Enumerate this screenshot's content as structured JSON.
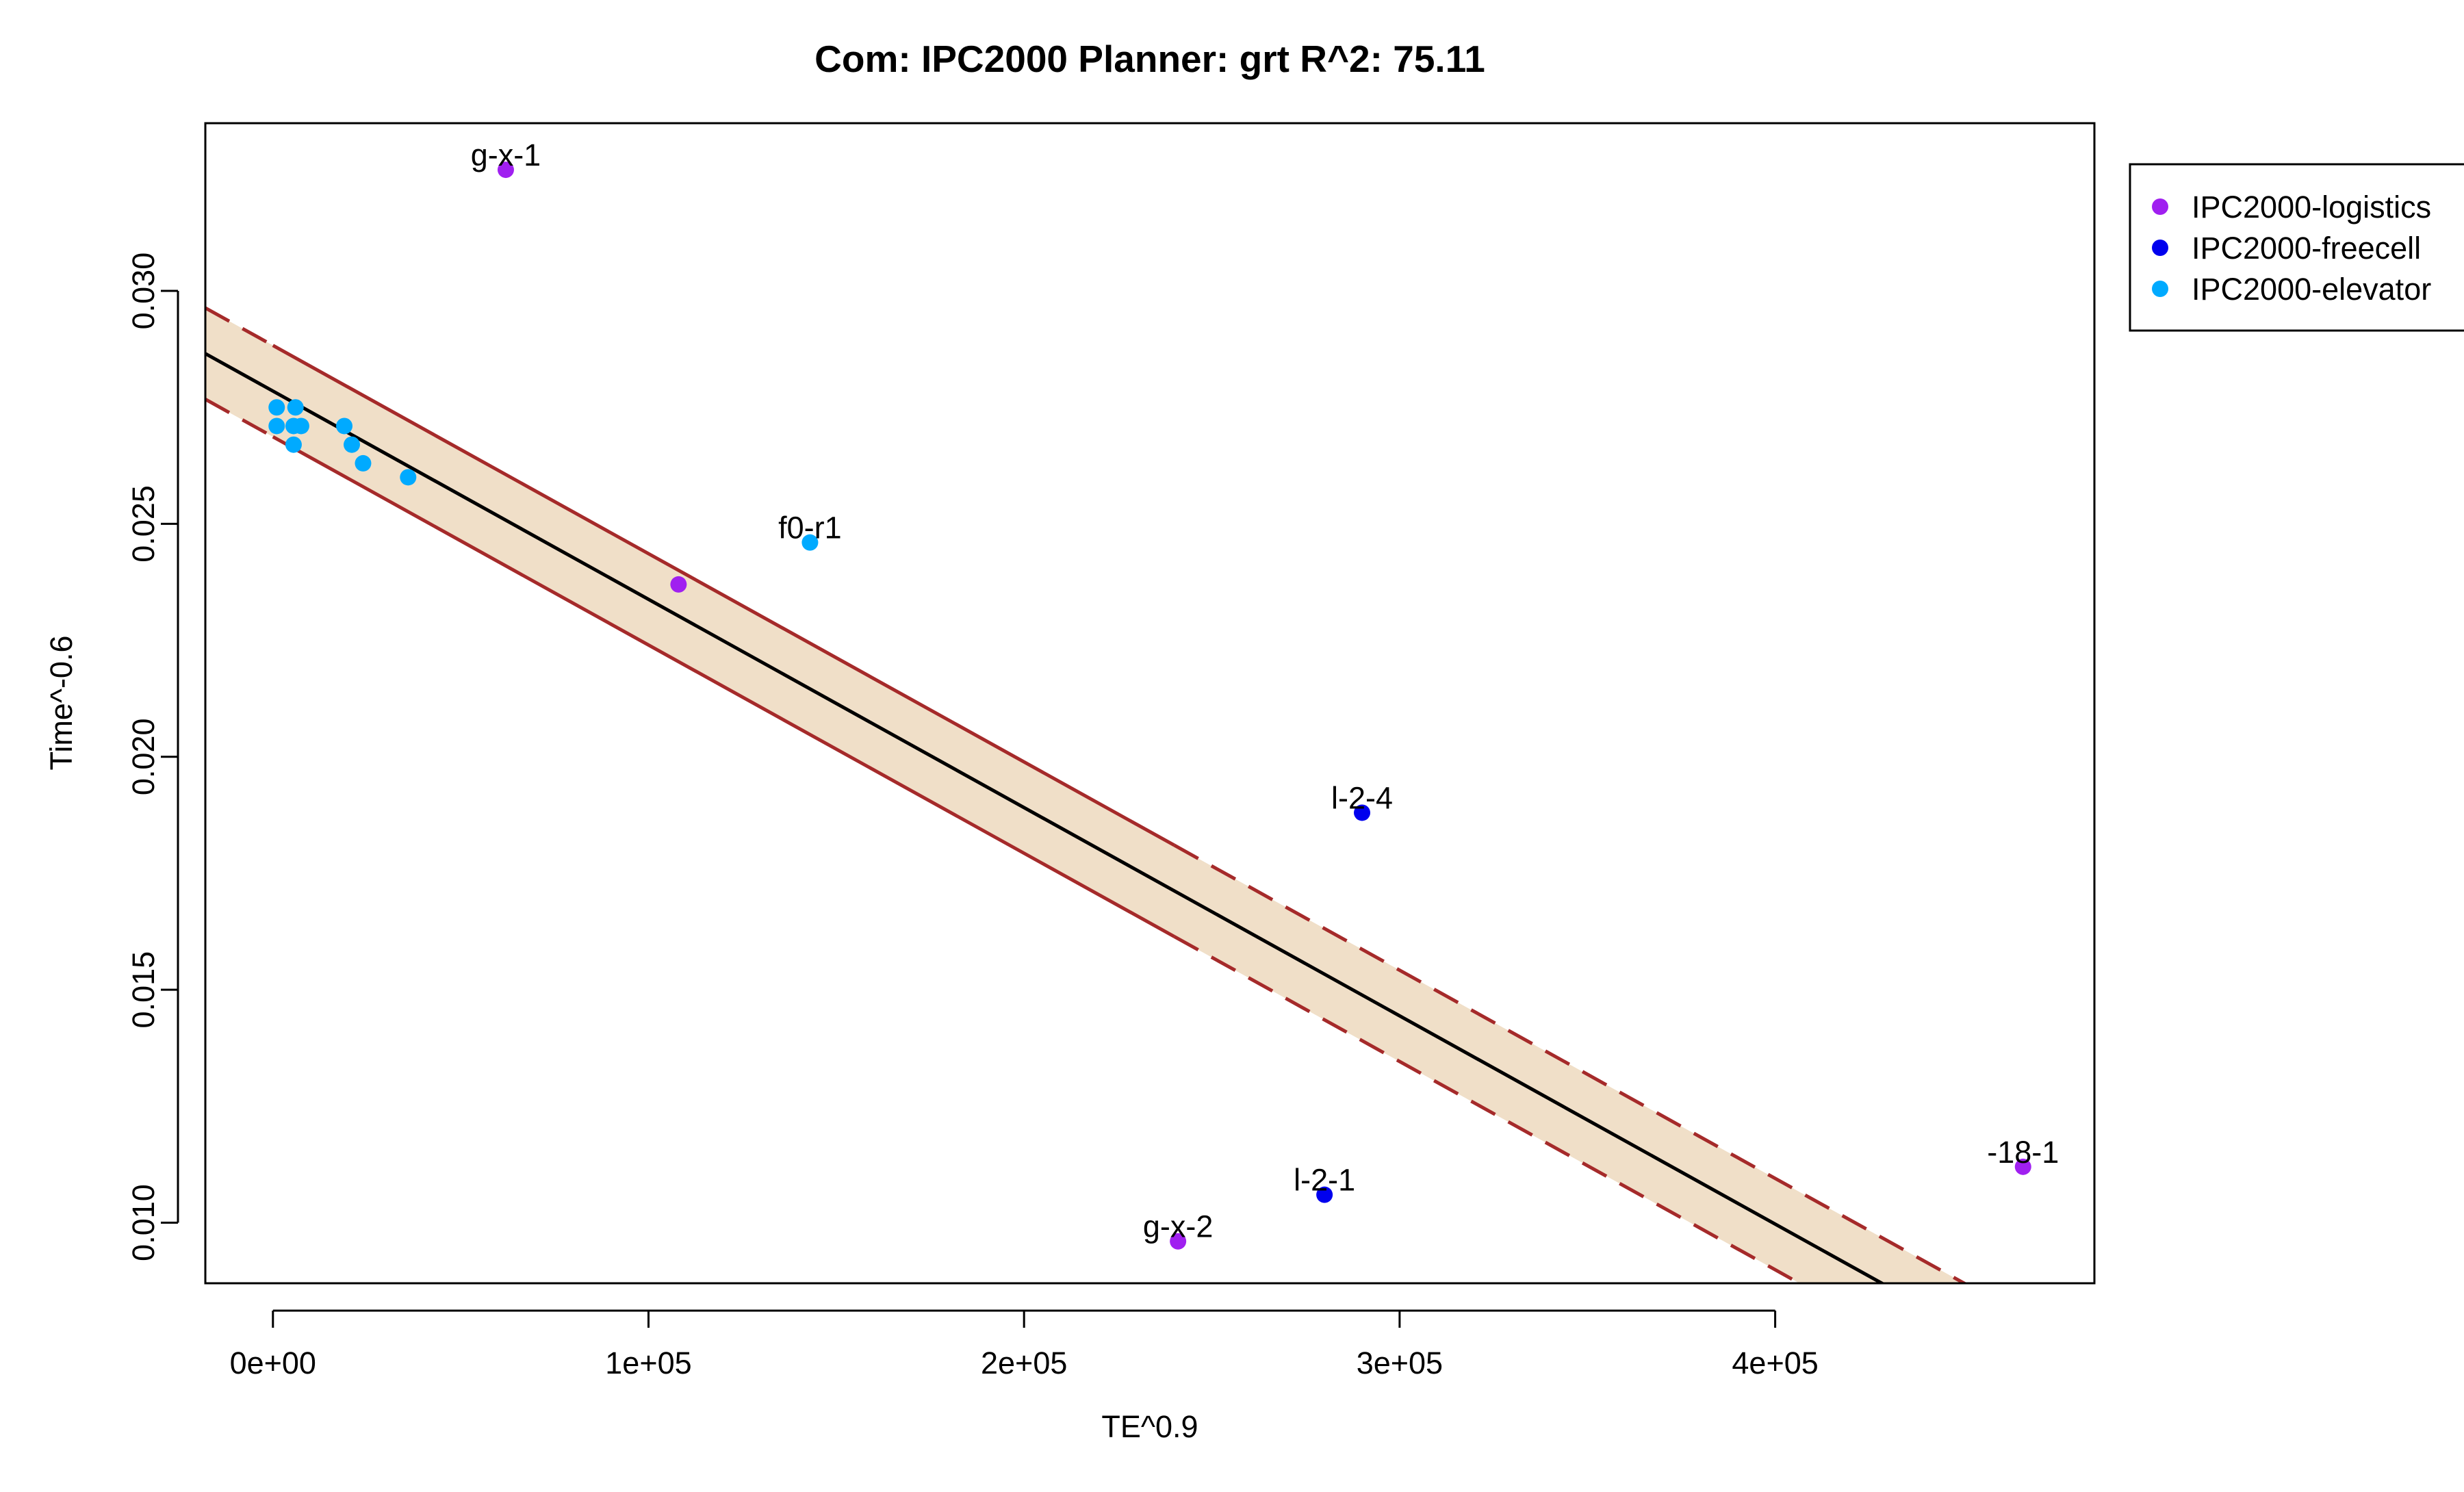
{
  "chart_data": {
    "type": "scatter",
    "title": "Com: IPC2000 Planner: grt R^2: 75.11",
    "xlabel": "TE^0.9",
    "ylabel": "Time^-0.6",
    "xlim": [
      -18000,
      485000
    ],
    "ylim": [
      0.0087,
      0.0336
    ],
    "x_ticks": [
      0,
      100000,
      200000,
      300000,
      400000
    ],
    "x_tick_labels": [
      "0e+00",
      "1e+05",
      "2e+05",
      "3e+05",
      "4e+05"
    ],
    "y_ticks": [
      0.01,
      0.015,
      0.02,
      0.025,
      0.03
    ],
    "y_tick_labels": [
      "0.010",
      "0.015",
      "0.020",
      "0.025",
      "0.030"
    ],
    "grid": false,
    "legend_position": "top-right, outside plot",
    "regression": {
      "intercept": 0.02785,
      "slope": -4.47e-08,
      "band_halfwidth": 0.00098,
      "solid_band_x_range": [
        0,
        240000
      ],
      "line_color": "#000000",
      "band_line_color": "#a52a2a",
      "band_fill_color": "#f0dfc8"
    },
    "series": [
      {
        "name": "IPC2000-logistics",
        "color": "#a020f0",
        "points": [
          {
            "x": 62000,
            "y": 0.0326,
            "label": "g-x-1"
          },
          {
            "x": 108000,
            "y": 0.0237,
            "label": ""
          },
          {
            "x": 241000,
            "y": 0.0096,
            "label": "g-x-2"
          },
          {
            "x": 466000,
            "y": 0.0112,
            "label": "-18-1"
          }
        ]
      },
      {
        "name": "IPC2000-freecell",
        "color": "#0000ee",
        "points": [
          {
            "x": 290000,
            "y": 0.0188,
            "label": "l-2-4"
          },
          {
            "x": 280000,
            "y": 0.0106,
            "label": "l-2-1"
          }
        ]
      },
      {
        "name": "IPC2000-elevator",
        "color": "#00aaff",
        "points": [
          {
            "x": 1000,
            "y": 0.0275,
            "label": ""
          },
          {
            "x": 6000,
            "y": 0.0275,
            "label": ""
          },
          {
            "x": 1000,
            "y": 0.0271,
            "label": ""
          },
          {
            "x": 5500,
            "y": 0.0271,
            "label": ""
          },
          {
            "x": 7500,
            "y": 0.0271,
            "label": ""
          },
          {
            "x": 5500,
            "y": 0.0267,
            "label": ""
          },
          {
            "x": 19000,
            "y": 0.0271,
            "label": ""
          },
          {
            "x": 21000,
            "y": 0.0267,
            "label": ""
          },
          {
            "x": 24000,
            "y": 0.0263,
            "label": ""
          },
          {
            "x": 36000,
            "y": 0.026,
            "label": ""
          },
          {
            "x": 143000,
            "y": 0.0246,
            "label": "f0-r1"
          }
        ]
      }
    ]
  }
}
